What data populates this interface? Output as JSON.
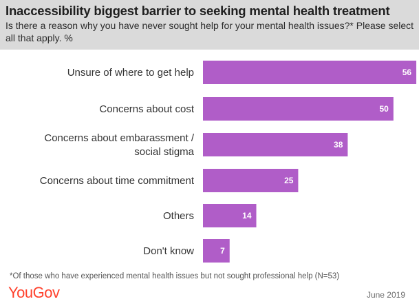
{
  "header": {
    "title": "Inaccessibility biggest barrier to seeking mental health treatment",
    "subtitle": "Is there a reason why you have never sought help for your mental health issues?* Please select all that apply. %"
  },
  "chart_data": {
    "type": "bar",
    "orientation": "horizontal",
    "categories": [
      "Unsure of where to get help",
      "Concerns about cost",
      "Concerns about embarassment / social stigma",
      "Concerns about time commitment",
      "Others",
      "Don't know"
    ],
    "category_lines": [
      [
        "Unsure of where to get help"
      ],
      [
        "Concerns about cost"
      ],
      [
        "Concerns about embarassment /",
        "social stigma"
      ],
      [
        "Concerns about time commitment"
      ],
      [
        "Others"
      ],
      [
        "Don't know"
      ]
    ],
    "values": [
      56,
      50,
      38,
      25,
      14,
      7
    ],
    "data_labels": [
      "56",
      "50",
      "38",
      "25",
      "14",
      "7"
    ],
    "xlim": [
      0,
      60
    ],
    "bar_color": "#b05dc8",
    "legend": "none",
    "grid": false
  },
  "footer": {
    "footnote": "*Of those who have experienced mental health issues but not sought professional help (N=53)",
    "brand": "YouGov",
    "date": "June 2019"
  },
  "colors": {
    "header_bg": "#dadada",
    "brand": "#ff412c",
    "bar": "#b05dc8"
  }
}
